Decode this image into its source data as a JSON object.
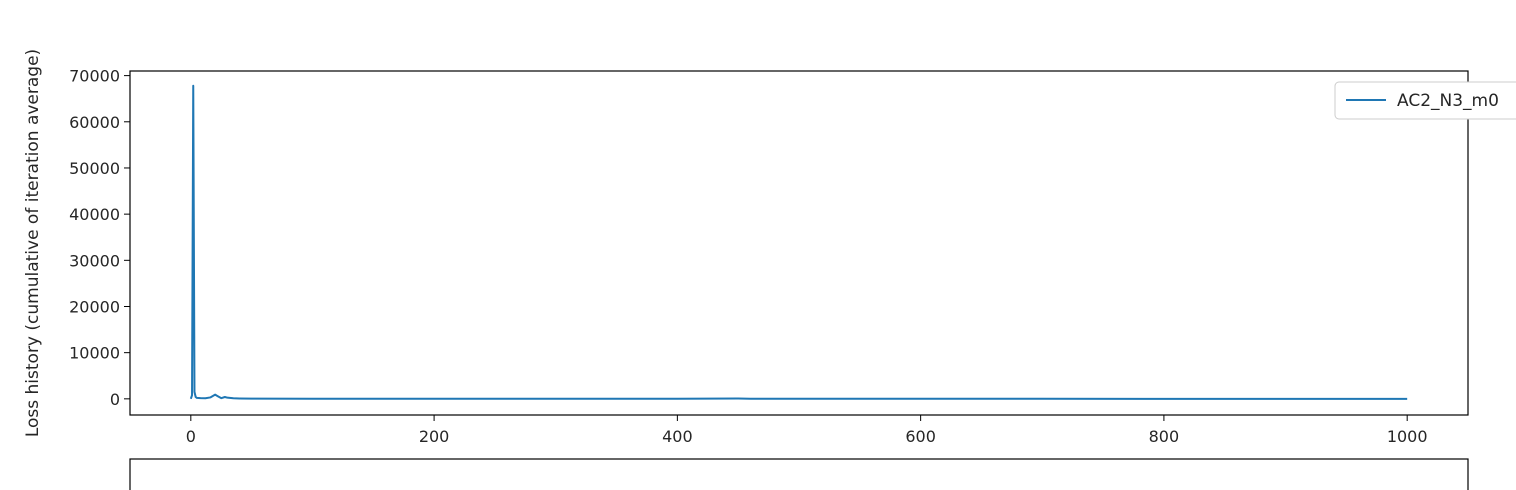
{
  "chart_data": {
    "type": "line",
    "title": "",
    "xlabel": "",
    "ylabel": "Loss history (cumulative of iteration average)",
    "xlim": [
      -50,
      1050
    ],
    "ylim": [
      -3500,
      71000
    ],
    "xticks": [
      0,
      200,
      400,
      600,
      800,
      1000
    ],
    "yticks": [
      0,
      10000,
      20000,
      30000,
      40000,
      50000,
      60000,
      70000
    ],
    "xtick_labels": [
      "0",
      "200",
      "400",
      "600",
      "800",
      "1000"
    ],
    "ytick_labels": [
      "0",
      "10000",
      "20000",
      "30000",
      "40000",
      "50000",
      "60000",
      "70000"
    ],
    "grid": false,
    "legend": "top-right",
    "series": [
      {
        "name": "AC2_N3_m0",
        "color": "#1f77b4",
        "x": [
          0,
          1,
          2,
          3,
          4,
          5,
          8,
          12,
          16,
          20,
          22,
          25,
          28,
          30,
          35,
          40,
          50,
          100,
          200,
          300,
          400,
          450,
          460,
          500,
          600,
          700,
          800,
          900,
          1000
        ],
        "y": [
          0,
          800,
          67800,
          1500,
          400,
          200,
          150,
          120,
          300,
          900,
          600,
          150,
          400,
          250,
          120,
          80,
          50,
          30,
          20,
          15,
          12,
          60,
          20,
          10,
          8,
          6,
          5,
          4,
          3
        ]
      }
    ]
  },
  "next_panel": {
    "visible": true
  }
}
